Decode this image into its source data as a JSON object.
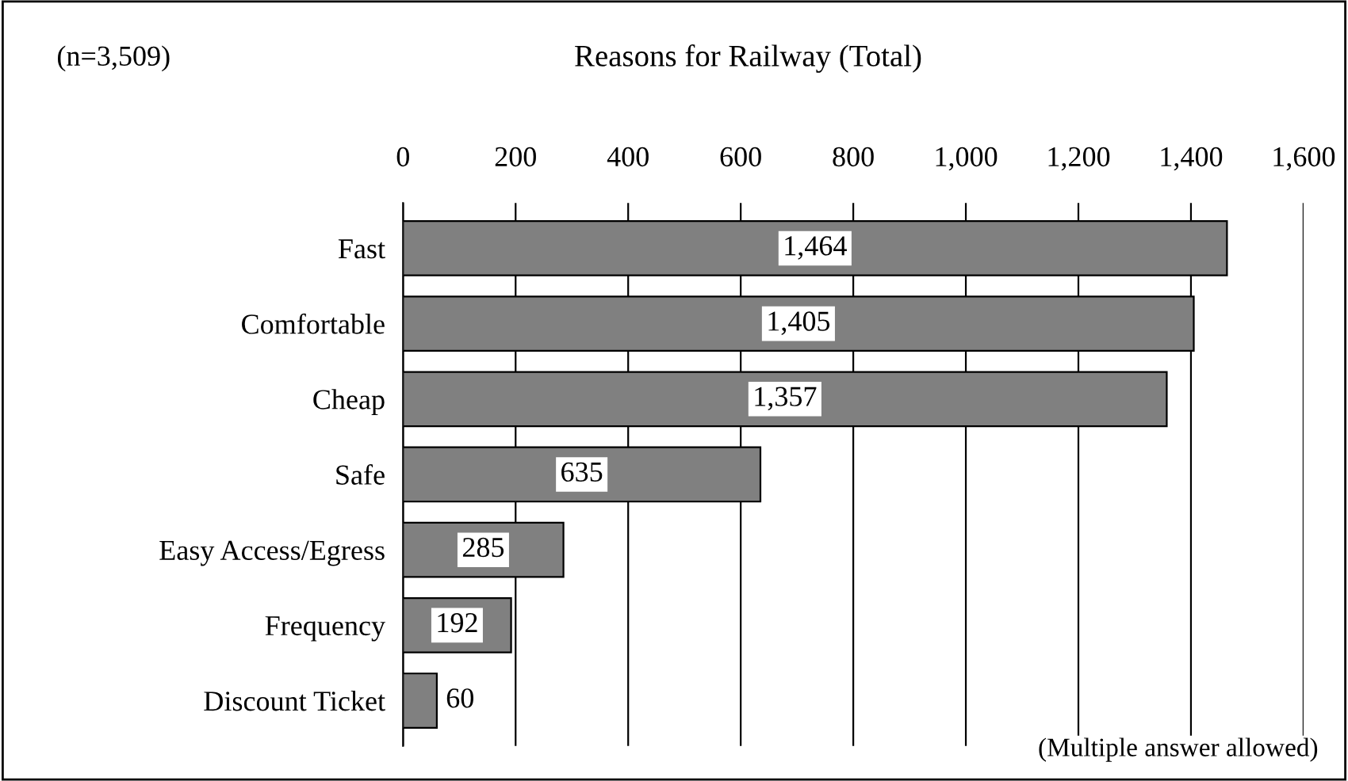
{
  "chart_data": {
    "type": "bar",
    "orientation": "horizontal",
    "title": "Reasons for Railway (Total)",
    "categories": [
      "Fast",
      "Comfortable",
      "Cheap",
      "Safe",
      "Easy Access/Egress",
      "Frequency",
      "Discount Ticket"
    ],
    "values": [
      1464,
      1405,
      1357,
      635,
      285,
      192,
      60
    ],
    "value_labels": [
      "1,464",
      "1,405",
      "1,357",
      "635",
      "285",
      "192",
      "60"
    ],
    "color": "#808080",
    "xlim": [
      0,
      1600
    ],
    "xticks": [
      0,
      200,
      400,
      600,
      800,
      {
        "value": 1000,
        "label": "1,000"
      },
      {
        "value": 1200,
        "label": "1,200"
      },
      {
        "value": 1400,
        "label": "1,400"
      },
      {
        "value": 1600,
        "label": "1,600"
      }
    ],
    "grid": "x",
    "annotations": [
      "(n=3,509)",
      "(Multiple answer allowed)"
    ]
  }
}
